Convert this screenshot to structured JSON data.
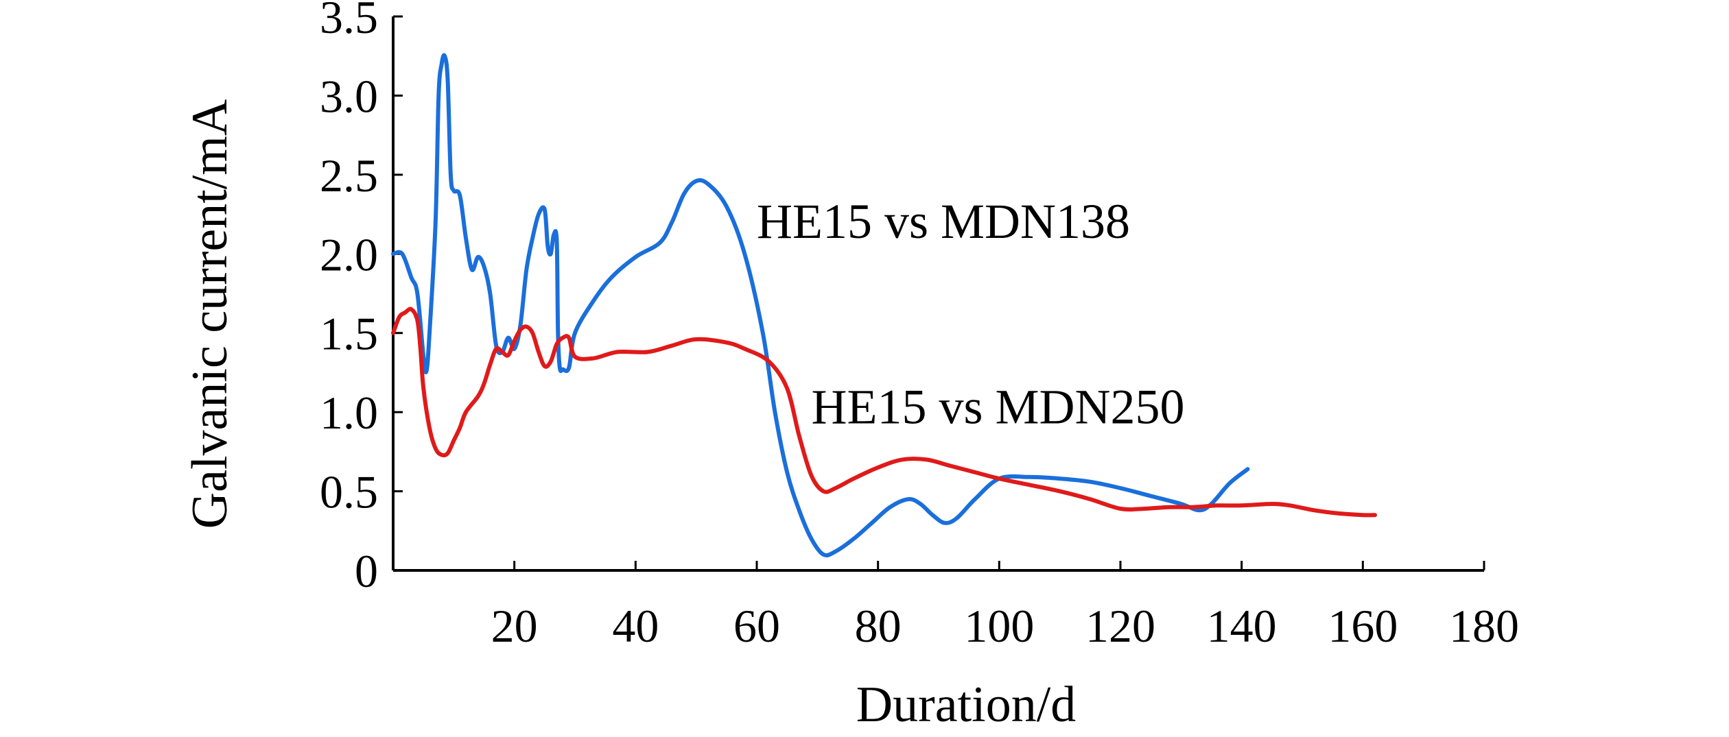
{
  "chart_data": {
    "type": "line",
    "title": "",
    "xlabel": "Duration/d",
    "ylabel": "Galvanic current/mA",
    "xlim": [
      0,
      180
    ],
    "ylim": [
      0,
      3.5
    ],
    "x_ticks": [
      {
        "value": 20,
        "label": "20"
      },
      {
        "value": 40,
        "label": "40"
      },
      {
        "value": 60,
        "label": "60"
      },
      {
        "value": 80,
        "label": "80"
      },
      {
        "value": 100,
        "label": "100"
      },
      {
        "value": 120,
        "label": "120"
      },
      {
        "value": 140,
        "label": "140"
      },
      {
        "value": 160,
        "label": "160"
      },
      {
        "value": 180,
        "label": "180"
      }
    ],
    "y_ticks": [
      {
        "value": 0,
        "label": "0"
      },
      {
        "value": 0.5,
        "label": "0.5"
      },
      {
        "value": 1.0,
        "label": "1.0"
      },
      {
        "value": 1.5,
        "label": "1.5"
      },
      {
        "value": 2.0,
        "label": "2.0"
      },
      {
        "value": 2.5,
        "label": "2.5"
      },
      {
        "value": 3.0,
        "label": "3.0"
      },
      {
        "value": 3.5,
        "label": "3.5"
      }
    ],
    "grid": false,
    "legend": "none",
    "series": [
      {
        "name": "HE15 vs MDN138",
        "color": "#1a6fdb",
        "label_anchor": {
          "x": 60,
          "y": 2.1
        },
        "points": [
          [
            0,
            2.0
          ],
          [
            1.5,
            2.0
          ],
          [
            3,
            1.85
          ],
          [
            4,
            1.75
          ],
          [
            5,
            1.35
          ],
          [
            5.5,
            1.26
          ],
          [
            6,
            1.5
          ],
          [
            7,
            2.2
          ],
          [
            7.5,
            3.0
          ],
          [
            8,
            3.2
          ],
          [
            8.5,
            3.25
          ],
          [
            9,
            3.1
          ],
          [
            9.5,
            2.5
          ],
          [
            10,
            2.4
          ],
          [
            11,
            2.37
          ],
          [
            12,
            2.1
          ],
          [
            13,
            1.9
          ],
          [
            14,
            1.98
          ],
          [
            15,
            1.92
          ],
          [
            16,
            1.75
          ],
          [
            17,
            1.42
          ],
          [
            18,
            1.38
          ],
          [
            19,
            1.47
          ],
          [
            20,
            1.4
          ],
          [
            21,
            1.55
          ],
          [
            22,
            1.9
          ],
          [
            23,
            2.1
          ],
          [
            24,
            2.25
          ],
          [
            25,
            2.28
          ],
          [
            25.5,
            2.05
          ],
          [
            26,
            2.0
          ],
          [
            26.5,
            2.12
          ],
          [
            27,
            2.08
          ],
          [
            27.2,
            1.5
          ],
          [
            27.5,
            1.28
          ],
          [
            28,
            1.27
          ],
          [
            29,
            1.28
          ],
          [
            30,
            1.5
          ],
          [
            33,
            1.7
          ],
          [
            36,
            1.85
          ],
          [
            40,
            1.98
          ],
          [
            44,
            2.07
          ],
          [
            46,
            2.2
          ],
          [
            48,
            2.38
          ],
          [
            50,
            2.46
          ],
          [
            52,
            2.44
          ],
          [
            55,
            2.3
          ],
          [
            58,
            2.0
          ],
          [
            61,
            1.5
          ],
          [
            63,
            1.0
          ],
          [
            65,
            0.62
          ],
          [
            67,
            0.38
          ],
          [
            69,
            0.2
          ],
          [
            71,
            0.1
          ],
          [
            73,
            0.12
          ],
          [
            76,
            0.2
          ],
          [
            79,
            0.3
          ],
          [
            82,
            0.4
          ],
          [
            85,
            0.45
          ],
          [
            87,
            0.42
          ],
          [
            89,
            0.35
          ],
          [
            91,
            0.3
          ],
          [
            93,
            0.33
          ],
          [
            96,
            0.45
          ],
          [
            100,
            0.58
          ],
          [
            105,
            0.59
          ],
          [
            110,
            0.58
          ],
          [
            115,
            0.56
          ],
          [
            120,
            0.52
          ],
          [
            125,
            0.47
          ],
          [
            130,
            0.42
          ],
          [
            133,
            0.38
          ],
          [
            135,
            0.42
          ],
          [
            138,
            0.55
          ],
          [
            141,
            0.64
          ]
        ]
      },
      {
        "name": "HE15 vs MDN250",
        "color": "#e01a1a",
        "label_anchor": {
          "x": 69,
          "y": 0.93
        },
        "points": [
          [
            0,
            1.5
          ],
          [
            1,
            1.6
          ],
          [
            2,
            1.63
          ],
          [
            3,
            1.65
          ],
          [
            4,
            1.58
          ],
          [
            4.5,
            1.4
          ],
          [
            5,
            1.15
          ],
          [
            6,
            0.9
          ],
          [
            7,
            0.77
          ],
          [
            8,
            0.73
          ],
          [
            9,
            0.74
          ],
          [
            10,
            0.82
          ],
          [
            11,
            0.9
          ],
          [
            12,
            1.0
          ],
          [
            14,
            1.1
          ],
          [
            15,
            1.18
          ],
          [
            16,
            1.3
          ],
          [
            17,
            1.4
          ],
          [
            18,
            1.38
          ],
          [
            19,
            1.36
          ],
          [
            20,
            1.45
          ],
          [
            21,
            1.52
          ],
          [
            22,
            1.54
          ],
          [
            23,
            1.5
          ],
          [
            24,
            1.38
          ],
          [
            25,
            1.29
          ],
          [
            26,
            1.32
          ],
          [
            27,
            1.43
          ],
          [
            28,
            1.47
          ],
          [
            29,
            1.47
          ],
          [
            30,
            1.35
          ],
          [
            33,
            1.34
          ],
          [
            37,
            1.38
          ],
          [
            42,
            1.38
          ],
          [
            46,
            1.42
          ],
          [
            50,
            1.46
          ],
          [
            55,
            1.44
          ],
          [
            58,
            1.4
          ],
          [
            62,
            1.32
          ],
          [
            65,
            1.15
          ],
          [
            67,
            0.85
          ],
          [
            69,
            0.6
          ],
          [
            71,
            0.5
          ],
          [
            73,
            0.52
          ],
          [
            76,
            0.58
          ],
          [
            80,
            0.65
          ],
          [
            84,
            0.7
          ],
          [
            88,
            0.7
          ],
          [
            92,
            0.66
          ],
          [
            96,
            0.62
          ],
          [
            100,
            0.58
          ],
          [
            105,
            0.54
          ],
          [
            110,
            0.5
          ],
          [
            115,
            0.45
          ],
          [
            120,
            0.39
          ],
          [
            124,
            0.39
          ],
          [
            128,
            0.4
          ],
          [
            132,
            0.4
          ],
          [
            136,
            0.41
          ],
          [
            140,
            0.41
          ],
          [
            145,
            0.42
          ],
          [
            148,
            0.41
          ],
          [
            152,
            0.38
          ],
          [
            156,
            0.36
          ],
          [
            160,
            0.35
          ],
          [
            162,
            0.35
          ]
        ]
      }
    ]
  }
}
